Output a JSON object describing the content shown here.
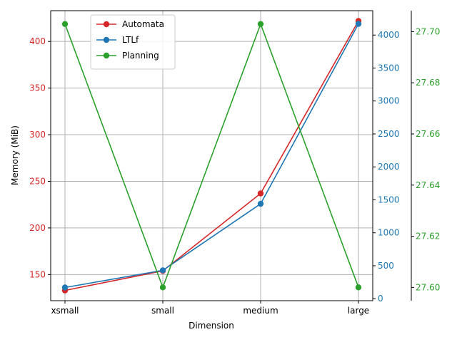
{
  "chart_data": {
    "type": "line",
    "categories": [
      "xsmall",
      "small",
      "medium",
      "large"
    ],
    "xlabel": "Dimension",
    "series": [
      {
        "name": "Automata",
        "axis": "left",
        "color": "#d62728",
        "values": [
          133,
          154,
          237,
          422
        ]
      },
      {
        "name": "LTLf",
        "axis": "right1",
        "color": "#1f77b4",
        "values": [
          170,
          430,
          1440,
          4170
        ]
      },
      {
        "name": "Planning",
        "axis": "right2",
        "color": "#2ca02c",
        "values": [
          27.703,
          27.6,
          27.703,
          27.6
        ]
      }
    ],
    "axes": {
      "left": {
        "label": "Memory (MiB)",
        "ylim": [
          122,
          433
        ],
        "ticks": [
          150,
          200,
          250,
          300,
          350,
          400
        ],
        "color": "#d62728"
      },
      "right1": {
        "label": "",
        "ylim": [
          -30,
          4370
        ],
        "ticks": [
          0,
          500,
          1000,
          1500,
          2000,
          2500,
          3000,
          3500,
          4000
        ],
        "color": "#1f77b4"
      },
      "right2": {
        "label": "",
        "ylim": [
          27.5948,
          27.7082
        ],
        "ticks": [
          27.6,
          27.62,
          27.64,
          27.66,
          27.68,
          27.7
        ],
        "tick_labels": [
          "27.60",
          "27.62",
          "27.64",
          "27.66",
          "27.68",
          "27.70"
        ],
        "color": "#2ca02c"
      }
    },
    "grid": true,
    "legend_position": "top-left"
  }
}
